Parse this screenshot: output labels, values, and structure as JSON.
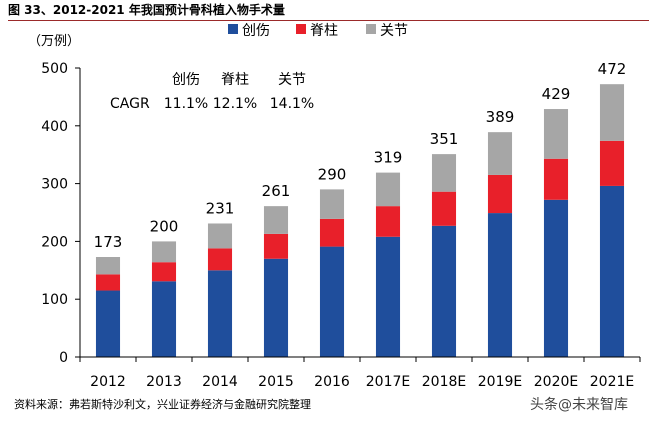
{
  "figure_title": "图 33、2012-2021 年我国预计骨科植入物手术量",
  "source_note": "资料来源：弗若斯特沙利文，兴业证券经济与金融研究院整理",
  "watermark": "头条@未来智库",
  "cagr": {
    "headers": [
      "创伤",
      "脊柱",
      "关节"
    ],
    "label": "CAGR",
    "values": [
      "11.1%",
      "12.1%",
      "14.1%"
    ]
  },
  "chart_data": {
    "type": "bar",
    "stacked": true,
    "title": "",
    "unit_label": "（万例）",
    "categories": [
      "2012",
      "2013",
      "2014",
      "2015",
      "2016",
      "2017E",
      "2018E",
      "2019E",
      "2020E",
      "2021E"
    ],
    "series": [
      {
        "name": "创伤",
        "color": "#1f4e9c",
        "values": [
          115,
          131,
          150,
          170,
          191,
          208,
          227,
          249,
          272,
          296
        ]
      },
      {
        "name": "脊柱",
        "color": "#e8202a",
        "values": [
          28,
          33,
          38,
          43,
          48,
          53,
          59,
          66,
          71,
          78
        ]
      },
      {
        "name": "关节",
        "color": "#a6a6a6",
        "values": [
          30,
          36,
          43,
          48,
          51,
          58,
          65,
          74,
          86,
          98
        ]
      }
    ],
    "totals": [
      173,
      200,
      231,
      261,
      290,
      319,
      351,
      389,
      429,
      472
    ],
    "ylim": [
      0,
      500
    ],
    "yticks": [
      0,
      100,
      200,
      300,
      400,
      500
    ],
    "legend_position": "top-center",
    "grid": false
  }
}
